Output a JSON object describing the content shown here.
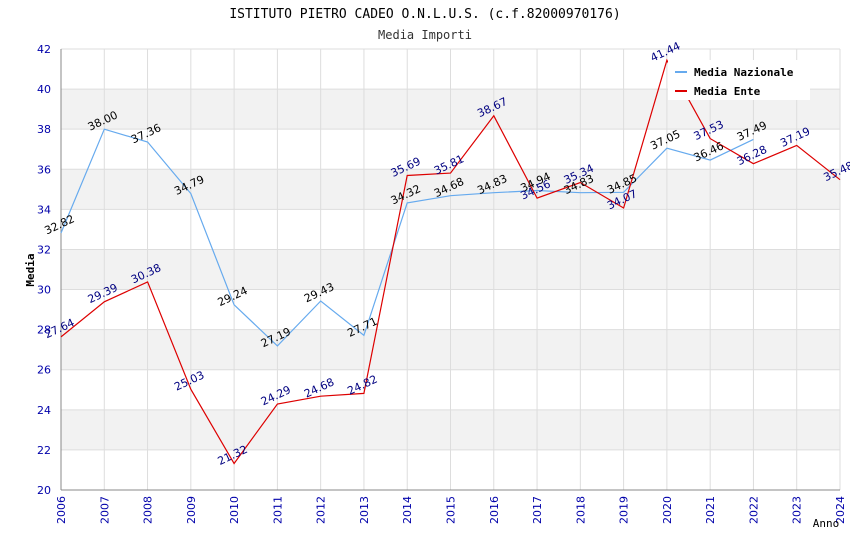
{
  "chart_data": {
    "type": "line",
    "title": "ISTITUTO PIETRO CADEO O.N.L.U.S. (c.f.82000970176)",
    "subtitle": "Media Importi",
    "xlabel": "Anno",
    "ylabel": "Media",
    "ylim": [
      20,
      42
    ],
    "y_ticks": [
      "20",
      "22",
      "24",
      "26",
      "28",
      "30",
      "32",
      "34",
      "36",
      "38",
      "40",
      "42"
    ],
    "x": [
      "2006",
      "2007",
      "2008",
      "2009",
      "2010",
      "2011",
      "2012",
      "2013",
      "2014",
      "2015",
      "2016",
      "2017",
      "2018",
      "2019",
      "2020",
      "2021",
      "2022",
      "2023",
      "2024"
    ],
    "grid": true,
    "legend_position": "top-right",
    "series": [
      {
        "name": "Media Nazionale",
        "color": "#66aaee",
        "label_color": "#000000",
        "values": [
          32.82,
          38.0,
          37.36,
          34.79,
          29.24,
          27.19,
          29.43,
          27.71,
          34.32,
          34.68,
          34.83,
          34.94,
          34.83,
          34.85,
          37.05,
          36.46,
          37.49,
          null,
          null
        ],
        "labels": [
          "32.82",
          "38.00",
          "37.36",
          "34.79",
          "29.24",
          "27.19",
          "29.43",
          "27.71",
          "34.32",
          "34.68",
          "34.83",
          "34.94",
          "34.83",
          "34.85",
          "37.05",
          "36.46",
          "37.49",
          null,
          null
        ]
      },
      {
        "name": "Media Ente",
        "color": "#dd0000",
        "label_color": "#000080",
        "values": [
          27.64,
          29.39,
          30.38,
          25.03,
          21.32,
          24.29,
          24.68,
          24.82,
          35.69,
          35.81,
          38.67,
          34.56,
          35.34,
          34.07,
          41.44,
          37.53,
          36.28,
          37.19,
          35.48
        ],
        "labels": [
          "27.64",
          "29.39",
          "30.38",
          "25.03",
          "21.32",
          "24.29",
          "24.68",
          "24.82",
          "35.69",
          "35.81",
          "38.67",
          "34.56",
          "35.34",
          "34.07",
          "41.44",
          "37.53",
          "36.28",
          "37.19",
          "35.48"
        ]
      }
    ]
  }
}
